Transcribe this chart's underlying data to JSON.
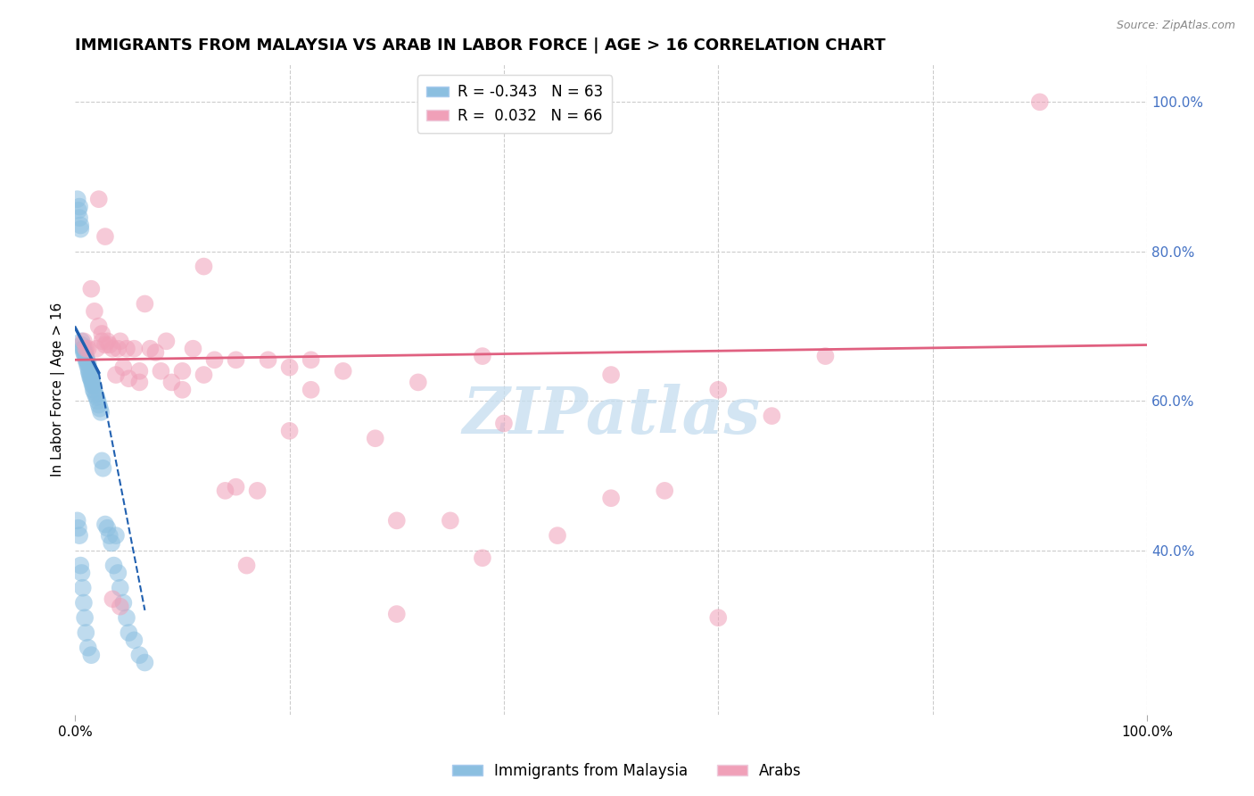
{
  "title": "IMMIGRANTS FROM MALAYSIA VS ARAB IN LABOR FORCE | AGE > 16 CORRELATION CHART",
  "source": "Source: ZipAtlas.com",
  "ylabel": "In Labor Force | Age > 16",
  "right_ytick_labels": [
    "100.0%",
    "80.0%",
    "60.0%",
    "40.0%"
  ],
  "right_ytick_values": [
    1.0,
    0.8,
    0.6,
    0.4
  ],
  "xlim": [
    0.0,
    1.0
  ],
  "ylim": [
    0.18,
    1.05
  ],
  "legend_R_blue": "-0.343",
  "legend_N_blue": "63",
  "legend_R_pink": "0.032",
  "legend_N_pink": "66",
  "legend_label_blue": "Immigrants from Malaysia",
  "legend_label_pink": "Arabs",
  "blue_color": "#8bbfe0",
  "pink_color": "#f0a0b8",
  "blue_line_color": "#2060b0",
  "pink_line_color": "#e06080",
  "watermark": "ZIPatlas",
  "watermark_color": "#c8dff0",
  "background_color": "#ffffff",
  "grid_color": "#cccccc",
  "blue_scatter_x": [
    0.002,
    0.003,
    0.004,
    0.004,
    0.005,
    0.005,
    0.006,
    0.006,
    0.007,
    0.008,
    0.008,
    0.009,
    0.009,
    0.01,
    0.01,
    0.011,
    0.011,
    0.012,
    0.012,
    0.013,
    0.013,
    0.014,
    0.014,
    0.015,
    0.015,
    0.016,
    0.016,
    0.017,
    0.017,
    0.018,
    0.019,
    0.02,
    0.021,
    0.022,
    0.023,
    0.024,
    0.025,
    0.026,
    0.028,
    0.03,
    0.032,
    0.034,
    0.036,
    0.038,
    0.04,
    0.042,
    0.045,
    0.048,
    0.05,
    0.055,
    0.06,
    0.065,
    0.002,
    0.003,
    0.004,
    0.005,
    0.006,
    0.007,
    0.008,
    0.009,
    0.01,
    0.012,
    0.015
  ],
  "blue_scatter_y": [
    0.87,
    0.855,
    0.845,
    0.86,
    0.835,
    0.83,
    0.68,
    0.675,
    0.67,
    0.67,
    0.665,
    0.665,
    0.66,
    0.66,
    0.655,
    0.655,
    0.65,
    0.65,
    0.645,
    0.64,
    0.638,
    0.635,
    0.632,
    0.63,
    0.628,
    0.625,
    0.622,
    0.62,
    0.615,
    0.612,
    0.608,
    0.605,
    0.6,
    0.595,
    0.59,
    0.585,
    0.52,
    0.51,
    0.435,
    0.43,
    0.42,
    0.41,
    0.38,
    0.42,
    0.37,
    0.35,
    0.33,
    0.31,
    0.29,
    0.28,
    0.26,
    0.25,
    0.44,
    0.43,
    0.42,
    0.38,
    0.37,
    0.35,
    0.33,
    0.31,
    0.29,
    0.27,
    0.26
  ],
  "pink_scatter_x": [
    0.008,
    0.01,
    0.012,
    0.015,
    0.018,
    0.02,
    0.022,
    0.025,
    0.025,
    0.028,
    0.03,
    0.032,
    0.035,
    0.038,
    0.04,
    0.042,
    0.045,
    0.048,
    0.05,
    0.055,
    0.06,
    0.065,
    0.07,
    0.075,
    0.08,
    0.085,
    0.09,
    0.1,
    0.11,
    0.12,
    0.13,
    0.14,
    0.15,
    0.16,
    0.17,
    0.18,
    0.2,
    0.22,
    0.25,
    0.28,
    0.3,
    0.32,
    0.35,
    0.38,
    0.4,
    0.45,
    0.5,
    0.55,
    0.6,
    0.65,
    0.7,
    0.022,
    0.028,
    0.035,
    0.042,
    0.06,
    0.1,
    0.15,
    0.22,
    0.3,
    0.38,
    0.5,
    0.6,
    0.12,
    0.2,
    0.9
  ],
  "pink_scatter_y": [
    0.68,
    0.67,
    0.67,
    0.75,
    0.72,
    0.67,
    0.7,
    0.68,
    0.69,
    0.675,
    0.68,
    0.675,
    0.67,
    0.635,
    0.67,
    0.68,
    0.645,
    0.67,
    0.63,
    0.67,
    0.64,
    0.73,
    0.67,
    0.665,
    0.64,
    0.68,
    0.625,
    0.64,
    0.67,
    0.635,
    0.655,
    0.48,
    0.655,
    0.38,
    0.48,
    0.655,
    0.645,
    0.615,
    0.64,
    0.55,
    0.44,
    0.625,
    0.44,
    0.39,
    0.57,
    0.42,
    0.635,
    0.48,
    0.615,
    0.58,
    0.66,
    0.87,
    0.82,
    0.335,
    0.325,
    0.625,
    0.615,
    0.485,
    0.655,
    0.315,
    0.66,
    0.47,
    0.31,
    0.78,
    0.56,
    1.0
  ],
  "blue_trend_x_start": 0.0,
  "blue_trend_y_start": 0.698,
  "blue_trend_x_solid_end": 0.022,
  "blue_trend_y_solid_end": 0.638,
  "blue_trend_x_dash_end": 0.065,
  "blue_trend_y_dash_end": 0.32,
  "pink_trend_x_start": 0.0,
  "pink_trend_y_start": 0.655,
  "pink_trend_x_end": 1.0,
  "pink_trend_y_end": 0.675,
  "title_fontsize": 13,
  "axis_label_fontsize": 11,
  "tick_fontsize": 11,
  "legend_fontsize": 12,
  "right_tick_color": "#4472c4",
  "bottom_legend_x_left": "0.0%",
  "bottom_legend_x_right": "100.0%"
}
